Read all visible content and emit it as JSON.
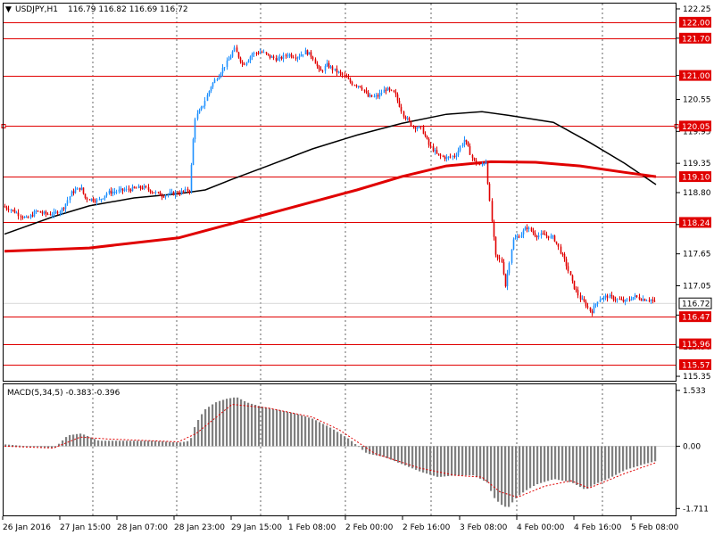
{
  "header": {
    "symbol_timeframe": "USDJPY,H1",
    "ohlc": "116.79 116.82 116.69 116.72",
    "menu_glyph": "▼"
  },
  "chart_data": {
    "type": "candlestick",
    "symbol": "USDJPY",
    "timeframe": "H1",
    "price_axis": {
      "range": [
        115.25,
        122.35
      ],
      "ticks": [
        "122.25",
        "121.70",
        "121.00",
        "120.55",
        "119.95",
        "119.35",
        "118.80",
        "118.20",
        "117.65",
        "117.05",
        "116.50",
        "115.90",
        "115.35"
      ]
    },
    "current_price": "116.72",
    "horizontal_levels": [
      "122.00",
      "121.70",
      "121.00",
      "120.05",
      "119.10",
      "118.24",
      "116.47",
      "115.96",
      "115.57"
    ],
    "time_axis": [
      "26 Jan 2016",
      "27 Jan 15:00",
      "28 Jan 07:00",
      "28 Jan 23:00",
      "29 Jan 15:00",
      "1 Feb 08:00",
      "2 Feb 00:00",
      "2 Feb 16:00",
      "3 Feb 08:00",
      "4 Feb 00:00",
      "4 Feb 16:00",
      "5 Feb 08:00"
    ],
    "candle_path": [
      [
        0,
        118.55
      ],
      [
        10,
        118.5
      ],
      [
        20,
        118.4
      ],
      [
        30,
        118.3
      ],
      [
        40,
        118.45
      ],
      [
        50,
        118.4
      ],
      [
        60,
        118.4
      ],
      [
        70,
        118.5
      ],
      [
        80,
        118.8
      ],
      [
        90,
        118.9
      ],
      [
        95,
        118.7
      ],
      [
        110,
        118.65
      ],
      [
        120,
        118.8
      ],
      [
        140,
        118.85
      ],
      [
        160,
        118.9
      ],
      [
        180,
        118.75
      ],
      [
        200,
        118.8
      ],
      [
        212,
        118.85
      ],
      [
        218,
        120.2
      ],
      [
        226,
        120.4
      ],
      [
        236,
        120.8
      ],
      [
        246,
        121.05
      ],
      [
        256,
        121.3
      ],
      [
        262,
        121.5
      ],
      [
        272,
        121.2
      ],
      [
        282,
        121.4
      ],
      [
        292,
        121.45
      ],
      [
        302,
        121.35
      ],
      [
        312,
        121.3
      ],
      [
        322,
        121.4
      ],
      [
        332,
        121.35
      ],
      [
        342,
        121.45
      ],
      [
        350,
        121.35
      ],
      [
        358,
        121.05
      ],
      [
        366,
        121.2
      ],
      [
        374,
        121.1
      ],
      [
        384,
        121.0
      ],
      [
        394,
        120.85
      ],
      [
        404,
        120.8
      ],
      [
        412,
        120.6
      ],
      [
        422,
        120.6
      ],
      [
        432,
        120.75
      ],
      [
        442,
        120.65
      ],
      [
        452,
        120.25
      ],
      [
        462,
        120.05
      ],
      [
        472,
        120.0
      ],
      [
        480,
        119.7
      ],
      [
        490,
        119.5
      ],
      [
        500,
        119.45
      ],
      [
        510,
        119.5
      ],
      [
        520,
        119.8
      ],
      [
        530,
        119.4
      ],
      [
        538,
        119.3
      ],
      [
        544,
        119.4
      ],
      [
        549,
        118.5
      ],
      [
        555,
        117.6
      ],
      [
        562,
        117.5
      ],
      [
        566,
        117.05
      ],
      [
        574,
        117.9
      ],
      [
        582,
        118.0
      ],
      [
        590,
        118.15
      ],
      [
        600,
        118.0
      ],
      [
        610,
        118.0
      ],
      [
        620,
        117.95
      ],
      [
        626,
        117.75
      ],
      [
        634,
        117.45
      ],
      [
        642,
        117.05
      ],
      [
        650,
        116.8
      ],
      [
        656,
        116.7
      ],
      [
        662,
        116.55
      ],
      [
        670,
        116.8
      ],
      [
        680,
        116.85
      ],
      [
        690,
        116.8
      ],
      [
        700,
        116.75
      ],
      [
        710,
        116.85
      ],
      [
        720,
        116.8
      ],
      [
        728,
        116.8
      ],
      [
        734,
        116.72
      ]
    ],
    "series": [
      {
        "color": "#000000",
        "points": [
          [
            5,
            118.02
          ],
          [
            60,
            118.35
          ],
          [
            100,
            118.55
          ],
          [
            150,
            118.7
          ],
          [
            200,
            118.78
          ],
          [
            230,
            118.85
          ],
          [
            260,
            119.05
          ],
          [
            300,
            119.3
          ],
          [
            350,
            119.62
          ],
          [
            400,
            119.88
          ],
          [
            450,
            120.1
          ],
          [
            500,
            120.27
          ],
          [
            540,
            120.32
          ],
          [
            570,
            120.25
          ],
          [
            620,
            120.12
          ],
          [
            660,
            119.75
          ],
          [
            700,
            119.35
          ],
          [
            735,
            118.95
          ]
        ]
      },
      {
        "color": "#e00000",
        "points": [
          [
            5,
            117.7
          ],
          [
            100,
            117.76
          ],
          [
            200,
            117.95
          ],
          [
            300,
            118.4
          ],
          [
            400,
            118.85
          ],
          [
            450,
            119.1
          ],
          [
            500,
            119.3
          ],
          [
            550,
            119.38
          ],
          [
            600,
            119.37
          ],
          [
            650,
            119.3
          ],
          [
            700,
            119.18
          ],
          [
            735,
            119.1
          ]
        ]
      }
    ],
    "macd": {
      "label": "MACD(5,34,5) -0.383 -0.396",
      "ticks": [
        "1.533",
        "0.00",
        "-1.711"
      ],
      "range": [
        -1.9,
        1.7
      ],
      "histogram_path": [
        [
          5,
          0.05
        ],
        [
          30,
          0.0
        ],
        [
          60,
          -0.05
        ],
        [
          75,
          0.3
        ],
        [
          90,
          0.35
        ],
        [
          110,
          0.15
        ],
        [
          140,
          0.15
        ],
        [
          170,
          0.15
        ],
        [
          200,
          0.1
        ],
        [
          212,
          0.15
        ],
        [
          218,
          0.6
        ],
        [
          228,
          1.0
        ],
        [
          240,
          1.2
        ],
        [
          252,
          1.3
        ],
        [
          264,
          1.35
        ],
        [
          276,
          1.2
        ],
        [
          290,
          1.1
        ],
        [
          310,
          1.0
        ],
        [
          330,
          0.9
        ],
        [
          350,
          0.75
        ],
        [
          370,
          0.5
        ],
        [
          390,
          0.2
        ],
        [
          410,
          -0.2
        ],
        [
          430,
          -0.3
        ],
        [
          450,
          -0.5
        ],
        [
          470,
          -0.7
        ],
        [
          490,
          -0.85
        ],
        [
          510,
          -0.8
        ],
        [
          530,
          -0.8
        ],
        [
          545,
          -1.0
        ],
        [
          552,
          -1.4
        ],
        [
          560,
          -1.6
        ],
        [
          568,
          -1.7
        ],
        [
          576,
          -1.45
        ],
        [
          586,
          -1.25
        ],
        [
          600,
          -1.05
        ],
        [
          620,
          -0.9
        ],
        [
          640,
          -1.0
        ],
        [
          655,
          -1.2
        ],
        [
          665,
          -1.05
        ],
        [
          680,
          -0.9
        ],
        [
          700,
          -0.65
        ],
        [
          720,
          -0.5
        ],
        [
          735,
          -0.4
        ]
      ],
      "signal_path": [
        [
          5,
          0.0
        ],
        [
          60,
          -0.05
        ],
        [
          90,
          0.25
        ],
        [
          120,
          0.2
        ],
        [
          200,
          0.12
        ],
        [
          220,
          0.35
        ],
        [
          260,
          1.15
        ],
        [
          300,
          1.05
        ],
        [
          350,
          0.8
        ],
        [
          380,
          0.45
        ],
        [
          420,
          -0.2
        ],
        [
          470,
          -0.6
        ],
        [
          510,
          -0.8
        ],
        [
          540,
          -0.85
        ],
        [
          560,
          -1.25
        ],
        [
          580,
          -1.4
        ],
        [
          610,
          -1.1
        ],
        [
          640,
          -0.95
        ],
        [
          660,
          -1.15
        ],
        [
          700,
          -0.75
        ],
        [
          735,
          -0.45
        ]
      ]
    },
    "colors": {
      "bull": "#1e90ff",
      "bear": "#e00000",
      "levels": "#e00000",
      "ma_fast": "#000000",
      "ma_slow": "#e00000",
      "grid": "#000000",
      "histogram": "#808080",
      "signal": "#e00000"
    }
  }
}
